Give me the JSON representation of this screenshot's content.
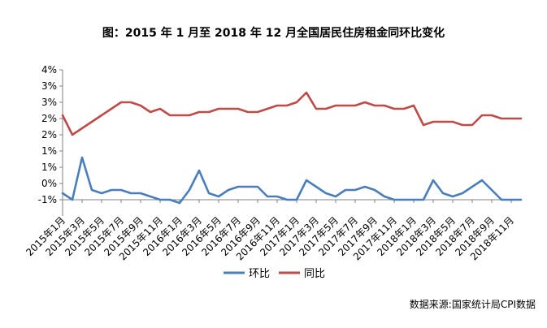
{
  "chart_data": {
    "type": "line",
    "title": "图：2015 年 1 月至 2018 年 12 月全国居民住房租金同环比变化",
    "categories": [
      "2015年1月",
      "2015年2月",
      "2015年3月",
      "2015年4月",
      "2015年5月",
      "2015年6月",
      "2015年7月",
      "2015年8月",
      "2015年9月",
      "2015年10月",
      "2015年11月",
      "2015年12月",
      "2016年1月",
      "2016年2月",
      "2016年3月",
      "2016年4月",
      "2016年5月",
      "2016年6月",
      "2016年7月",
      "2016年8月",
      "2016年9月",
      "2016年10月",
      "2016年11月",
      "2016年12月",
      "2017年1月",
      "2017年2月",
      "2017年3月",
      "2017年4月",
      "2017年5月",
      "2017年6月",
      "2017年7月",
      "2017年8月",
      "2017年9月",
      "2017年10月",
      "2017年11月",
      "2017年12月",
      "2018年1月",
      "2018年2月",
      "2018年3月",
      "2018年4月",
      "2018年5月",
      "2018年6月",
      "2018年7月",
      "2018年8月",
      "2018年9月",
      "2018年10月",
      "2018年11月",
      "2018年12月"
    ],
    "x_tick_labels": [
      "2015年1月",
      "2015年3月",
      "2015年5月",
      "2015年7月",
      "2015年9月",
      "2015年11月",
      "2016年1月",
      "2016年3月",
      "2016年5月",
      "2016年7月",
      "2016年9月",
      "2016年11月",
      "2017年1月",
      "2017年3月",
      "2017年5月",
      "2017年7月",
      "2017年9月",
      "2017年11月",
      "2018年1月",
      "2018年3月",
      "2018年5月",
      "2018年7月",
      "2018年9月",
      "2018年11月"
    ],
    "y_tick_labels": [
      "4%",
      "3%",
      "3%",
      "2%",
      "2%",
      "1%",
      "1%",
      "0%",
      "-1%"
    ],
    "ylim": [
      -0.5,
      4.0
    ],
    "y_unit": "%",
    "grid": false,
    "legend_position": "bottom",
    "series": [
      {
        "name": "环比",
        "color": "#4a7ebb",
        "values": [
          0.2,
          0.0,
          1.3,
          0.3,
          0.2,
          0.3,
          0.3,
          0.2,
          0.2,
          0.1,
          0.0,
          0.0,
          -0.1,
          0.3,
          0.9,
          0.2,
          0.1,
          0.3,
          0.4,
          0.4,
          0.4,
          0.1,
          0.1,
          0.0,
          0.0,
          0.6,
          0.4,
          0.2,
          0.1,
          0.3,
          0.3,
          0.4,
          0.3,
          0.1,
          0.0,
          0.0,
          0.0,
          0.0,
          0.6,
          0.2,
          0.1,
          0.2,
          0.4,
          0.6,
          0.3,
          0.0,
          0.0,
          0.0
        ]
      },
      {
        "name": "同比",
        "color": "#be4b48",
        "values": [
          2.6,
          2.0,
          2.2,
          2.4,
          2.6,
          2.8,
          3.0,
          3.0,
          2.9,
          2.7,
          2.8,
          2.6,
          2.6,
          2.6,
          2.7,
          2.7,
          2.8,
          2.8,
          2.8,
          2.7,
          2.7,
          2.8,
          2.9,
          2.9,
          3.0,
          3.3,
          2.8,
          2.8,
          2.9,
          2.9,
          2.9,
          3.0,
          2.9,
          2.9,
          2.8,
          2.8,
          2.9,
          2.3,
          2.4,
          2.4,
          2.4,
          2.3,
          2.3,
          2.6,
          2.6,
          2.5,
          2.5,
          2.5
        ]
      }
    ]
  },
  "source": "数据来源:国家统计局CPI数据"
}
